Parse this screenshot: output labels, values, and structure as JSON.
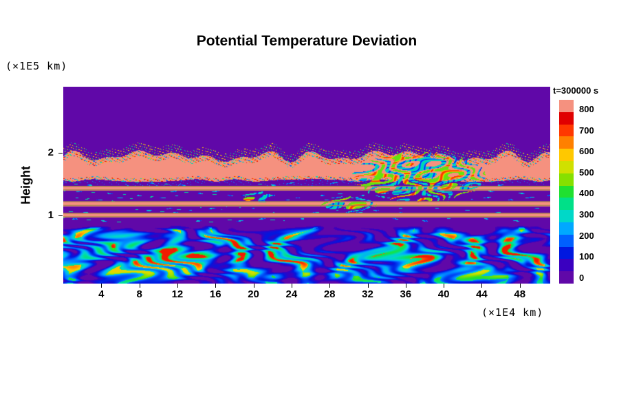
{
  "title": "Potential Temperature Deviation",
  "labels": {
    "y_unit": "(×1E5 km)",
    "x_unit": "(×1E4 km)",
    "y_axis": "Height",
    "time": "t=300000 s"
  },
  "chart_data": {
    "type": "heatmap",
    "title": "Potential Temperature Deviation",
    "ylabel": "Height",
    "y_unit": "(×1E5 km)",
    "x_unit": "(×1E4 km)",
    "time_label": "t=300000 s",
    "x_range": [
      0,
      51.2
    ],
    "y_range": [
      -0.09,
      3.06
    ],
    "x_ticks": [
      4,
      8,
      12,
      16,
      20,
      24,
      28,
      32,
      36,
      40,
      44,
      48
    ],
    "y_ticks": [
      1,
      2
    ],
    "grid": false,
    "legend": "colorbar-right",
    "colorbar": {
      "position": "right",
      "ticks": [
        800,
        700,
        600,
        500,
        400,
        300,
        200,
        100,
        0
      ],
      "segment_colors_top_to_bottom": [
        "#f5917f",
        "#e00000",
        "#ff3800",
        "#ff8000",
        "#ffc800",
        "#d0e000",
        "#86e000",
        "#20e030",
        "#00e088",
        "#00d8c8",
        "#00a8ff",
        "#0060ff",
        "#0018e0",
        "#3a00c0",
        "#6008a8"
      ]
    },
    "colormap_stops": [
      [
        0,
        "#6008a8"
      ],
      [
        60,
        "#3a00c0"
      ],
      [
        130,
        "#0018e0"
      ],
      [
        200,
        "#0060ff"
      ],
      [
        260,
        "#00a8ff"
      ],
      [
        320,
        "#00d8c8"
      ],
      [
        380,
        "#00e088"
      ],
      [
        440,
        "#20e030"
      ],
      [
        500,
        "#86e000"
      ],
      [
        560,
        "#d0e000"
      ],
      [
        620,
        "#ffc800"
      ],
      [
        680,
        "#ff8000"
      ],
      [
        730,
        "#ff3800"
      ],
      [
        790,
        "#e00000"
      ],
      [
        820,
        "#f5917f"
      ]
    ],
    "field_structure": {
      "background_value": 0,
      "background_color": "#6008a8",
      "band_color": "#f5917f",
      "stripe_edge_color": "#a6824a",
      "upper_background": {
        "y_min": 2.08,
        "y_max": 3.06,
        "value": 0
      },
      "main_band": {
        "y_min": 1.565,
        "y_max": 1.95,
        "value": 820,
        "ragged_top": true
      },
      "stripes": [
        {
          "y_min": 1.402,
          "y_max": 1.472,
          "value": 820
        },
        {
          "y_min": 1.152,
          "y_max": 1.228,
          "value": 820
        },
        {
          "y_min": 0.972,
          "y_max": 1.042,
          "value": 820
        }
      ],
      "bottom_turbulence": {
        "y_min": -0.09,
        "y_max": 0.87,
        "value_range": [
          0,
          700
        ],
        "billow_count": 7
      },
      "mixing_patch": {
        "x_center": 37.4,
        "y_center": 1.62,
        "x_half_width": 7.5,
        "y_half_width": 0.42
      }
    }
  }
}
